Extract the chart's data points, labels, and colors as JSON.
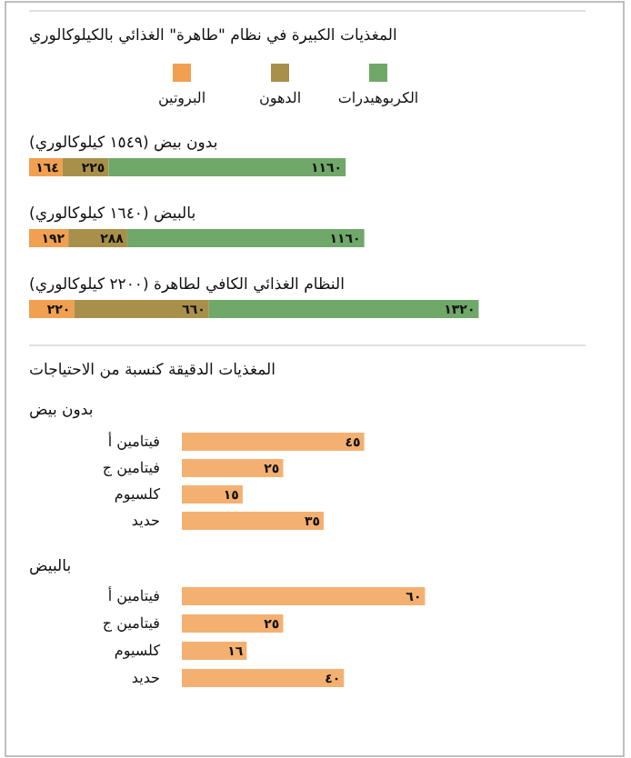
{
  "chart_data": [
    {
      "type": "bar",
      "orientation": "horizontal",
      "stacked": true,
      "title": "المغذيات الكبيرة في نظام \"طاهرة\" الغذائي بالكيلوكالوري",
      "categories": [
        "بدون بيض (١٥٤٩ كيلوكالوري)",
        "بالبيض (١٦٤٠ كيلوكالوري)",
        "النظام الغذائي الكافي لطاهرة (٢٢٠٠ كيلوكالوري)"
      ],
      "legend": "top",
      "series": [
        {
          "name": "البروتين",
          "color": "#f0a050",
          "values": [
            164,
            192,
            220
          ],
          "value_labels": [
            "١٦٤",
            "١٩٢",
            "٢٢٠"
          ]
        },
        {
          "name": "الدهون",
          "color": "#a8904a",
          "values": [
            225,
            288,
            660
          ],
          "value_labels": [
            "٢٢٥",
            "٢٨٨",
            "٦٦٠"
          ]
        },
        {
          "name": "الكربوهيدرات",
          "color": "#6fa868",
          "values": [
            1160,
            1160,
            1320
          ],
          "value_labels": [
            "١١٦٠",
            "١١٦٠",
            "١٣٢٠"
          ]
        }
      ]
    },
    {
      "type": "bar",
      "orientation": "horizontal",
      "title": "المغذيات الدقيقة كنسبة من الاحتياجات",
      "subtitle": "بدون بيض",
      "categories": [
        "فيتامين أ",
        "فيتامين ج",
        "كلسيوم",
        "حديد"
      ],
      "values": [
        45,
        25,
        15,
        35
      ],
      "color": "#f4b070",
      "value_labels": [
        "٤٥",
        "٢٥",
        "١٥",
        "٣٥"
      ]
    },
    {
      "type": "bar",
      "orientation": "horizontal",
      "subtitle": "بالبيض",
      "categories": [
        "فيتامين أ",
        "فيتامين ج",
        "كلسيوم",
        "حديد"
      ],
      "values": [
        60,
        25,
        16,
        40
      ],
      "color": "#f4b070",
      "value_labels": [
        "٦٠",
        "٢٥",
        "١٦",
        "٤٠"
      ]
    }
  ]
}
